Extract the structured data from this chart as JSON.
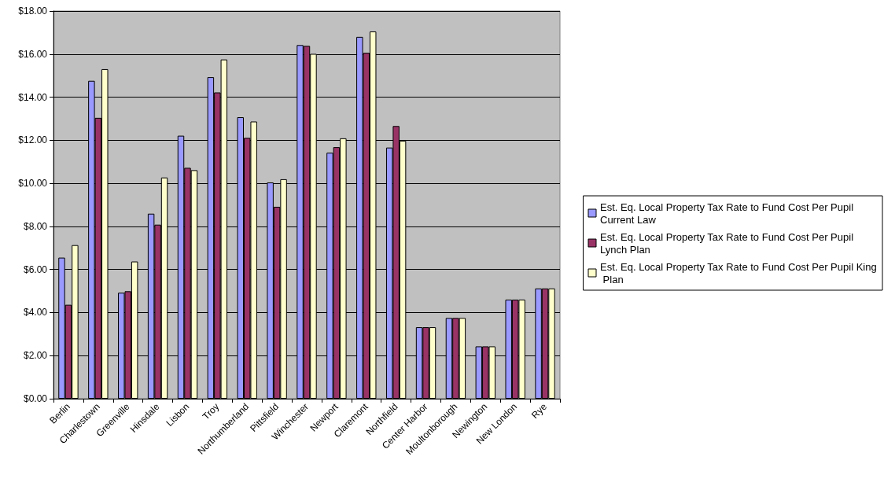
{
  "chart_data": {
    "type": "bar",
    "categories": [
      "Berlin",
      "Charlestown",
      "Greenville",
      "Hinsdale",
      "Lisbon",
      "Troy",
      "Northumberland",
      "Pittsfield",
      "Winchester",
      "Newport",
      "Claremont",
      "Northfield",
      "Center Harbor",
      "Moultonborough",
      "Newington",
      "New London",
      "Rye"
    ],
    "series": [
      {
        "name": "Est. Eq. Local Property Tax Rate to Fund Cost Per Pupil Current Law",
        "color": "#9999ff",
        "values": [
          6.55,
          14.76,
          4.92,
          8.59,
          12.21,
          14.93,
          13.07,
          10.04,
          16.42,
          11.42,
          16.8,
          11.66,
          3.32,
          3.75,
          2.43,
          4.6,
          5.12
        ]
      },
      {
        "name": "Est. Eq. Local Property Tax Rate to Fund Cost Per Pupil Lynch Plan",
        "color": "#993366",
        "values": [
          4.36,
          13.04,
          4.99,
          8.08,
          10.72,
          14.22,
          12.11,
          8.91,
          16.38,
          11.68,
          16.06,
          12.66,
          3.32,
          3.75,
          2.43,
          4.6,
          5.12
        ]
      },
      {
        "name": "Est. Eq. Local Property Tax Rate to Fund Cost Per Pupil King Plan",
        "color": "#ffffcc",
        "values": [
          7.13,
          15.3,
          6.37,
          10.27,
          10.61,
          15.75,
          12.87,
          10.19,
          16.01,
          12.09,
          17.05,
          11.98,
          3.32,
          3.75,
          2.43,
          4.6,
          5.12
        ]
      }
    ],
    "ylim": [
      0,
      18
    ],
    "yticks": [
      {
        "value": 0,
        "label": "$0.00"
      },
      {
        "value": 2,
        "label": "$2.00"
      },
      {
        "value": 4,
        "label": "$4.00"
      },
      {
        "value": 6,
        "label": "$6.00"
      },
      {
        "value": 8,
        "label": "$8.00"
      },
      {
        "value": 10,
        "label": "$10.00"
      },
      {
        "value": 12,
        "label": "$12.00"
      },
      {
        "value": 14,
        "label": "$14.00"
      },
      {
        "value": 16,
        "label": "$16.00"
      },
      {
        "value": 18,
        "label": "$18.00"
      }
    ],
    "grid": "y",
    "legend": "right"
  }
}
